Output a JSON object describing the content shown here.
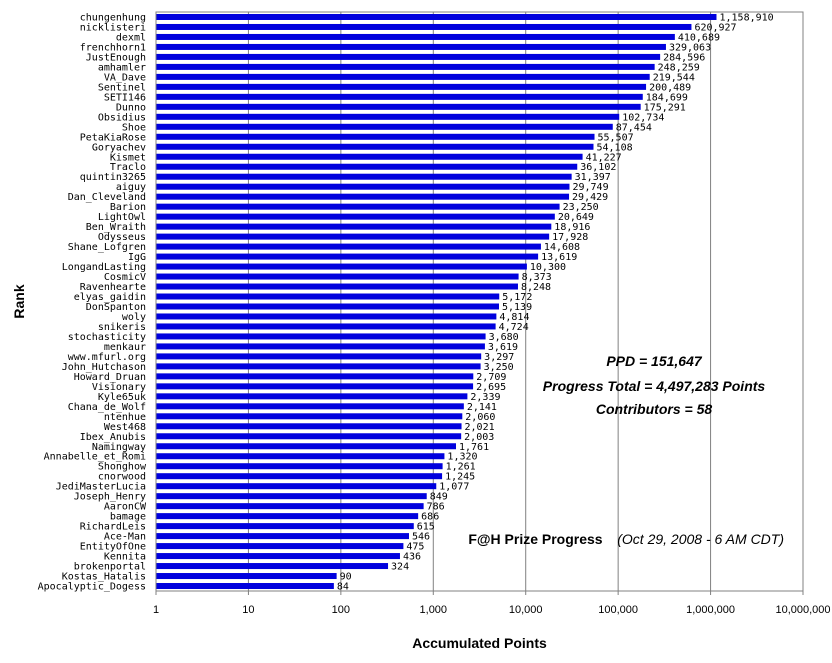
{
  "chart_data": {
    "type": "bar",
    "orientation": "horizontal",
    "x_scale": "log",
    "xlim": [
      1,
      10000000
    ],
    "grid": "vertical major lines",
    "bar_color": "#0000dd",
    "xlabel": "Accumulated Points",
    "ylabel": "Rank",
    "title": "F@H Prize Progress",
    "subtitle": "(Oct 29, 2008 - 6 AM CDT)",
    "annotations": [
      "PPD = 151,647",
      "Progress Total = 4,497,283 Points",
      "Contributors = 58"
    ],
    "x_ticks": [
      {
        "value": 1,
        "label": "1"
      },
      {
        "value": 10,
        "label": "10"
      },
      {
        "value": 100,
        "label": "100"
      },
      {
        "value": 1000,
        "label": "1,000"
      },
      {
        "value": 10000,
        "label": "10,000"
      },
      {
        "value": 100000,
        "label": "100,000"
      },
      {
        "value": 1000000,
        "label": "1,000,000"
      },
      {
        "value": 10000000,
        "label": "10,000,000"
      }
    ],
    "bars": [
      {
        "name": "chungenhung",
        "value": 1158910,
        "label": "1,158,910"
      },
      {
        "name": "nicklisteri",
        "value": 620927,
        "label": "620,927"
      },
      {
        "name": "dexml",
        "value": 410689,
        "label": "410,689"
      },
      {
        "name": "frenchhorn1",
        "value": 329063,
        "label": "329,063"
      },
      {
        "name": "JustEnough",
        "value": 284596,
        "label": "284,596"
      },
      {
        "name": "amhamler",
        "value": 248259,
        "label": "248,259"
      },
      {
        "name": "VA_Dave",
        "value": 219544,
        "label": "219,544"
      },
      {
        "name": "Sentinel",
        "value": 200489,
        "label": "200,489"
      },
      {
        "name": "SETI146",
        "value": 184699,
        "label": "184,699"
      },
      {
        "name": "Dunno",
        "value": 175291,
        "label": "175,291"
      },
      {
        "name": "Obsidius",
        "value": 102734,
        "label": "102,734"
      },
      {
        "name": "Shoe",
        "value": 87454,
        "label": "87,454"
      },
      {
        "name": "PetaKiaRose",
        "value": 55507,
        "label": "55,507"
      },
      {
        "name": "Goryachev",
        "value": 54108,
        "label": "54,108"
      },
      {
        "name": "Kismet",
        "value": 41227,
        "label": "41,227"
      },
      {
        "name": "Traclo",
        "value": 36102,
        "label": "36,102"
      },
      {
        "name": "quintin3265",
        "value": 31397,
        "label": "31,397"
      },
      {
        "name": "aiguy",
        "value": 29749,
        "label": "29,749"
      },
      {
        "name": "Dan_Cleveland",
        "value": 29429,
        "label": "29,429"
      },
      {
        "name": "Barion",
        "value": 23250,
        "label": "23,250"
      },
      {
        "name": "LightOwl",
        "value": 20649,
        "label": "20,649"
      },
      {
        "name": "Ben_Wraith",
        "value": 18916,
        "label": "18,916"
      },
      {
        "name": "Odysseus",
        "value": 17928,
        "label": "17,928"
      },
      {
        "name": "Shane_Lofgren",
        "value": 14608,
        "label": "14,608"
      },
      {
        "name": "IgG",
        "value": 13619,
        "label": "13,619"
      },
      {
        "name": "LongandLasting",
        "value": 10300,
        "label": "10,300"
      },
      {
        "name": "CosmicV",
        "value": 8373,
        "label": "8,373"
      },
      {
        "name": "Ravenhearte",
        "value": 8248,
        "label": "8,248"
      },
      {
        "name": "elyas_gaidin",
        "value": 5172,
        "label": "5,172"
      },
      {
        "name": "DonSpanton",
        "value": 5139,
        "label": "5,139"
      },
      {
        "name": "woly",
        "value": 4814,
        "label": "4,814"
      },
      {
        "name": "snikeris",
        "value": 4724,
        "label": "4,724"
      },
      {
        "name": "stochasticity",
        "value": 3680,
        "label": "3,680"
      },
      {
        "name": "menkaur",
        "value": 3619,
        "label": "3,619"
      },
      {
        "name": "www.mfurl.org",
        "value": 3297,
        "label": "3,297"
      },
      {
        "name": "John_Hutchason",
        "value": 3250,
        "label": "3,250"
      },
      {
        "name": "Howard_Druan",
        "value": 2709,
        "label": "2,709"
      },
      {
        "name": "Visionary",
        "value": 2695,
        "label": "2,695"
      },
      {
        "name": "Kyle65uk",
        "value": 2339,
        "label": "2,339"
      },
      {
        "name": "Chana_de_Wolf",
        "value": 2141,
        "label": "2,141"
      },
      {
        "name": "ntenhue",
        "value": 2060,
        "label": "2,060"
      },
      {
        "name": "West468",
        "value": 2021,
        "label": "2,021"
      },
      {
        "name": "Ibex_Anubis",
        "value": 2003,
        "label": "2,003"
      },
      {
        "name": "Namingway",
        "value": 1761,
        "label": "1,761"
      },
      {
        "name": "Annabelle_et_Romi",
        "value": 1320,
        "label": "1,320"
      },
      {
        "name": "Shonghow",
        "value": 1261,
        "label": "1,261"
      },
      {
        "name": "cnorwood",
        "value": 1245,
        "label": "1,245"
      },
      {
        "name": "JediMasterLucia",
        "value": 1077,
        "label": "1,077"
      },
      {
        "name": "Joseph_Henry",
        "value": 849,
        "label": "849"
      },
      {
        "name": "AaronCW",
        "value": 786,
        "label": "786"
      },
      {
        "name": "bamage",
        "value": 686,
        "label": "686"
      },
      {
        "name": "RichardLeis",
        "value": 615,
        "label": "615"
      },
      {
        "name": "Ace-Man",
        "value": 546,
        "label": "546"
      },
      {
        "name": "EntityOfOne",
        "value": 475,
        "label": "475"
      },
      {
        "name": "Kennita",
        "value": 436,
        "label": "436"
      },
      {
        "name": "brokenportal",
        "value": 324,
        "label": "324"
      },
      {
        "name": "Kostas_Hatalis",
        "value": 90,
        "label": "90"
      },
      {
        "name": "Apocalyptic_Dogess",
        "value": 84,
        "label": "84"
      }
    ]
  }
}
